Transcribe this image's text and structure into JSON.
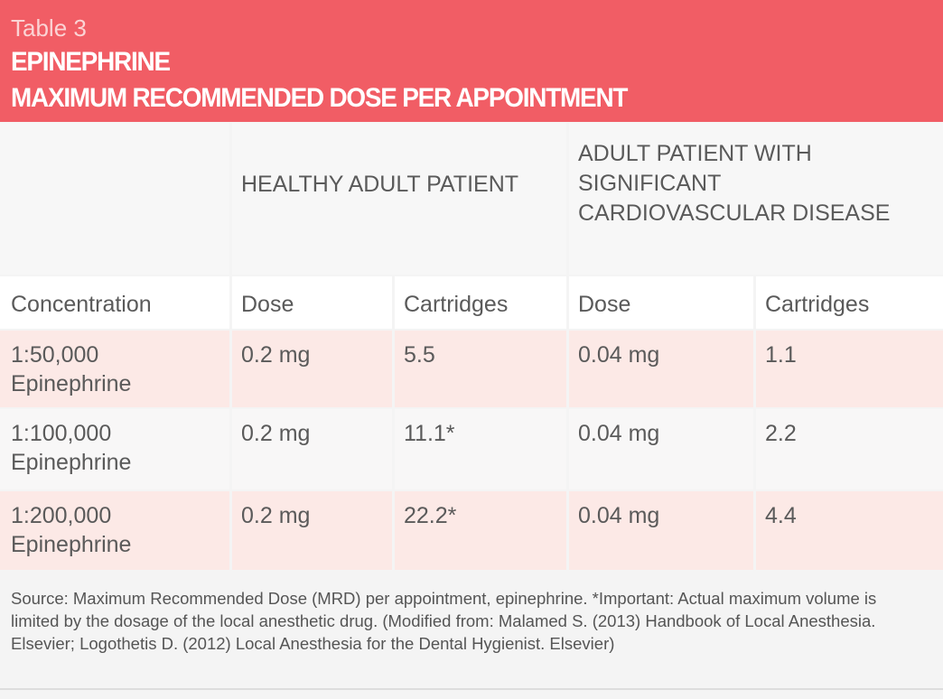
{
  "header": {
    "label": "Table 3",
    "title": [
      "EPINEPHRINE",
      "MAXIMUM RECOMMENDED DOSE PER APPOINTMENT"
    ]
  },
  "table": {
    "groups": [
      "HEALTHY ADULT PATIENT",
      "ADULT PATIENT WITH SIGNIFICANT CARDIOVASCULAR DISEASE"
    ],
    "columns": [
      "Concentration",
      "Dose",
      "Cartridges",
      "Dose",
      "Cartridges"
    ],
    "rows": [
      [
        "1:50,000 Epinephrine",
        "0.2 mg",
        "5.5",
        "0.04 mg",
        "1.1"
      ],
      [
        "1:100,000 Epinephrine",
        "0.2 mg",
        "11.1*",
        "0.04 mg",
        "2.2"
      ],
      [
        "1:200,000 Epinephrine",
        "0.2 mg",
        "22.2*",
        "0.04 mg",
        "4.4"
      ]
    ]
  },
  "source": "Source: Maximum Recommended Dose (MRD) per appointment, epinephrine. *Important: Actual maximum volume is limited by the dosage of the local anesthetic drug. (Modified from: Malamed S. (2013) Handbook of Local Anesthesia. Elsevier; Logothetis D. (2012) Local Anesthesia for the Dental Hygienist. Elsevier)"
}
